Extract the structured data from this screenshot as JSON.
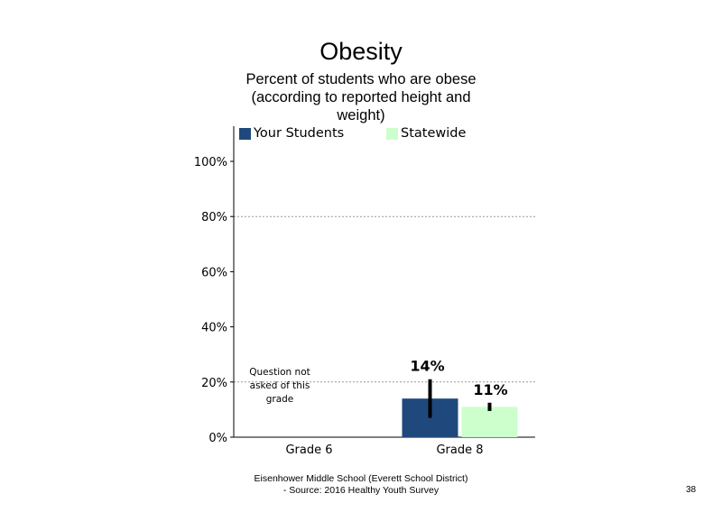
{
  "title": "Obesity",
  "subtitle": "Percent of students who are obese (according to reported height and weight)",
  "note": "Question not asked of this grade",
  "footer": {
    "line1": "Eisenhower Middle School (Everett School District)",
    "line2": "- Source: 2016 Healthy Youth Survey"
  },
  "page_number": "38",
  "colors": {
    "your_students": "#1f497d",
    "statewide": "#ccffcc"
  },
  "chart_data": {
    "type": "bar",
    "categories": [
      "Grade 6",
      "Grade 8"
    ],
    "series": [
      {
        "name": "Your Students",
        "values": [
          null,
          14
        ],
        "labels": [
          "",
          "14%"
        ],
        "error": [
          null,
          [
            7,
            21
          ]
        ]
      },
      {
        "name": "Statewide",
        "values": [
          null,
          11
        ],
        "labels": [
          "",
          "11%"
        ],
        "error": [
          null,
          [
            9.5,
            12.5
          ]
        ]
      }
    ],
    "ylim": [
      0,
      100
    ],
    "yticks": [
      0,
      20,
      40,
      60,
      80,
      100
    ],
    "ytick_labels": [
      "0%",
      "20%",
      "40%",
      "60%",
      "80%",
      "100%"
    ],
    "gridlines": [
      20,
      80
    ],
    "legend_position": "top"
  }
}
